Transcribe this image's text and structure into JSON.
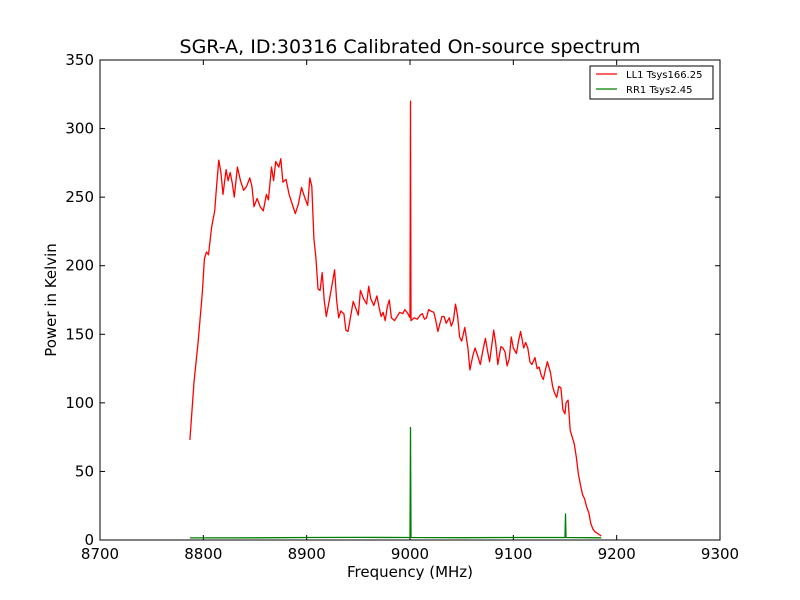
{
  "chart_data": {
    "type": "line",
    "title": "SGR-A, ID:30316 Calibrated On-source spectrum",
    "xlabel": "Frequency (MHz)",
    "ylabel": "Power in Kelvin",
    "xlim": [
      8700,
      9300
    ],
    "ylim": [
      0,
      350
    ],
    "xticks": [
      8700,
      8800,
      8900,
      9000,
      9100,
      9200,
      9300
    ],
    "yticks": [
      0,
      50,
      100,
      150,
      200,
      250,
      300,
      350
    ],
    "grid": false,
    "legend_position": "top-right",
    "series": [
      {
        "name": "LL1 Tsys166.25",
        "color": "#ff0000",
        "points": [
          [
            8787,
            73
          ],
          [
            8791,
            115
          ],
          [
            8795,
            145
          ],
          [
            8799,
            180
          ],
          [
            8801,
            205
          ],
          [
            8803,
            210
          ],
          [
            8805,
            208
          ],
          [
            8808,
            228
          ],
          [
            8811,
            240
          ],
          [
            8813,
            260
          ],
          [
            8815,
            277
          ],
          [
            8817,
            268
          ],
          [
            8819,
            252
          ],
          [
            8822,
            270
          ],
          [
            8824,
            262
          ],
          [
            8826,
            268
          ],
          [
            8828,
            260
          ],
          [
            8830,
            250
          ],
          [
            8833,
            272
          ],
          [
            8836,
            262
          ],
          [
            8839,
            255
          ],
          [
            8842,
            258
          ],
          [
            8845,
            264
          ],
          [
            8847,
            258
          ],
          [
            8849,
            243
          ],
          [
            8852,
            249
          ],
          [
            8855,
            243
          ],
          [
            8858,
            240
          ],
          [
            8861,
            252
          ],
          [
            8863,
            248
          ],
          [
            8866,
            272
          ],
          [
            8868,
            262
          ],
          [
            8870,
            276
          ],
          [
            8873,
            272
          ],
          [
            8875,
            278
          ],
          [
            8877,
            261
          ],
          [
            8880,
            263
          ],
          [
            8883,
            252
          ],
          [
            8886,
            245
          ],
          [
            8889,
            238
          ],
          [
            8892,
            245
          ],
          [
            8895,
            257
          ],
          [
            8898,
            250
          ],
          [
            8901,
            244
          ],
          [
            8903,
            264
          ],
          [
            8905,
            258
          ],
          [
            8907,
            220
          ],
          [
            8909,
            205
          ],
          [
            8911,
            183
          ],
          [
            8913,
            182
          ],
          [
            8915,
            195
          ],
          [
            8917,
            175
          ],
          [
            8919,
            163
          ],
          [
            8922,
            175
          ],
          [
            8925,
            188
          ],
          [
            8927,
            197
          ],
          [
            8929,
            175
          ],
          [
            8931,
            162
          ],
          [
            8933,
            167
          ],
          [
            8936,
            165
          ],
          [
            8938,
            153
          ],
          [
            8940,
            152
          ],
          [
            8943,
            165
          ],
          [
            8945,
            174
          ],
          [
            8948,
            168
          ],
          [
            8950,
            164
          ],
          [
            8952,
            182
          ],
          [
            8955,
            176
          ],
          [
            8958,
            172
          ],
          [
            8960,
            185
          ],
          [
            8962,
            176
          ],
          [
            8965,
            171
          ],
          [
            8968,
            178
          ],
          [
            8970,
            170
          ],
          [
            8972,
            163
          ],
          [
            8974,
            166
          ],
          [
            8976,
            160
          ],
          [
            8978,
            170
          ],
          [
            8980,
            175
          ],
          [
            8982,
            162
          ],
          [
            8985,
            160
          ],
          [
            8990,
            166
          ],
          [
            8993,
            165
          ],
          [
            8995,
            168
          ],
          [
            8998,
            165
          ],
          [
            9000,
            162
          ],
          [
            9000.5,
            320
          ],
          [
            9001,
            160
          ],
          [
            9004,
            162
          ],
          [
            9007,
            161
          ],
          [
            9010,
            164
          ],
          [
            9012,
            165
          ],
          [
            9014,
            161
          ],
          [
            9016,
            162
          ],
          [
            9018,
            168
          ],
          [
            9020,
            167
          ],
          [
            9023,
            166
          ],
          [
            9025,
            160
          ],
          [
            9027,
            152
          ],
          [
            9029,
            158
          ],
          [
            9031,
            163
          ],
          [
            9033,
            163
          ],
          [
            9035,
            158
          ],
          [
            9038,
            162
          ],
          [
            9040,
            156
          ],
          [
            9042,
            160
          ],
          [
            9044,
            172
          ],
          [
            9046,
            164
          ],
          [
            9048,
            148
          ],
          [
            9050,
            145
          ],
          [
            9053,
            155
          ],
          [
            9056,
            140
          ],
          [
            9058,
            124
          ],
          [
            9061,
            135
          ],
          [
            9063,
            140
          ],
          [
            9066,
            133
          ],
          [
            9068,
            128
          ],
          [
            9070,
            136
          ],
          [
            9073,
            147
          ],
          [
            9075,
            138
          ],
          [
            9077,
            130
          ],
          [
            9079,
            141
          ],
          [
            9081,
            153
          ],
          [
            9083,
            143
          ],
          [
            9085,
            128
          ],
          [
            9088,
            141
          ],
          [
            9090,
            140
          ],
          [
            9092,
            137
          ],
          [
            9094,
            127
          ],
          [
            9096,
            132
          ],
          [
            9098,
            148
          ],
          [
            9100,
            140
          ],
          [
            9103,
            136
          ],
          [
            9105,
            145
          ],
          [
            9107,
            152
          ],
          [
            9110,
            140
          ],
          [
            9112,
            144
          ],
          [
            9114,
            140
          ],
          [
            9116,
            130
          ],
          [
            9118,
            128
          ],
          [
            9121,
            133
          ],
          [
            9123,
            125
          ],
          [
            9125,
            126
          ],
          [
            9127,
            120
          ],
          [
            9129,
            117
          ],
          [
            9131,
            124
          ],
          [
            9133,
            130
          ],
          [
            9136,
            122
          ],
          [
            9138,
            112
          ],
          [
            9140,
            107
          ],
          [
            9142,
            104
          ],
          [
            9144,
            112
          ],
          [
            9146,
            111
          ],
          [
            9148,
            95
          ],
          [
            9150,
            92
          ],
          [
            9151,
            100
          ],
          [
            9153,
            102
          ],
          [
            9155,
            80
          ],
          [
            9157,
            75
          ],
          [
            9159,
            70
          ],
          [
            9161,
            60
          ],
          [
            9163,
            48
          ],
          [
            9165,
            40
          ],
          [
            9167,
            33
          ],
          [
            9169,
            30
          ],
          [
            9171,
            24
          ],
          [
            9173,
            20
          ],
          [
            9175,
            12
          ],
          [
            9177,
            8
          ],
          [
            9179,
            6
          ],
          [
            9181,
            5
          ],
          [
            9183,
            4
          ],
          [
            9185,
            3
          ]
        ]
      },
      {
        "name": "RR1 Tsys2.45",
        "color": "#008000",
        "points": [
          [
            8787,
            1.5
          ],
          [
            8850,
            1.6
          ],
          [
            8900,
            1.8
          ],
          [
            8950,
            1.9
          ],
          [
            8999,
            1.8
          ],
          [
            9000,
            1.8
          ],
          [
            9000.5,
            82
          ],
          [
            9001,
            1.8
          ],
          [
            9050,
            1.7
          ],
          [
            9100,
            1.8
          ],
          [
            9149,
            1.8
          ],
          [
            9150,
            1.8
          ],
          [
            9150.5,
            19
          ],
          [
            9151,
            1.8
          ],
          [
            9185,
            1.6
          ]
        ]
      }
    ]
  }
}
